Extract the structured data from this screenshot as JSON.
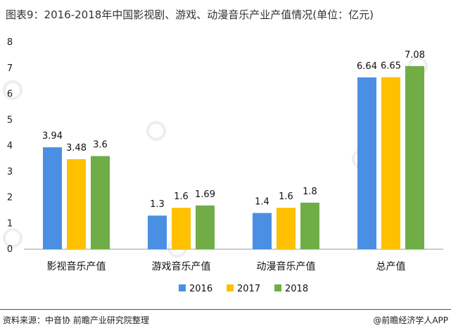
{
  "header": {
    "title": "图表9：2016-2018年中国影视剧、游戏、动漫音乐产业产值情况(单位：亿元)"
  },
  "footer": {
    "source": "资料来源：中音协 前瞻产业研究院整理",
    "credit": "@前瞻经济学人APP"
  },
  "colors": {
    "2016": "#4a8fe2",
    "2017": "#ffc000",
    "2018": "#70ad47",
    "axis": "#999999",
    "rule": "#2f5597"
  },
  "chart_data": {
    "type": "bar",
    "title": "图表9：2016-2018年中国影视剧、游戏、动漫音乐产业产值情况(单位：亿元)",
    "categories": [
      "影视音乐产值",
      "游戏音乐产值",
      "动漫音乐产值",
      "总产值"
    ],
    "series": [
      {
        "name": "2016",
        "values": [
          3.94,
          1.3,
          1.4,
          6.64
        ]
      },
      {
        "name": "2017",
        "values": [
          3.48,
          1.6,
          1.6,
          6.65
        ]
      },
      {
        "name": "2018",
        "values": [
          3.6,
          1.69,
          1.8,
          7.08
        ]
      }
    ],
    "value_labels": [
      [
        "3.94",
        "1.3",
        "1.4",
        "6.64"
      ],
      [
        "3.48",
        "1.6",
        "1.6",
        "6.65"
      ],
      [
        "3.6",
        "1.69",
        "1.8",
        "7.08"
      ]
    ],
    "ylim": [
      0,
      8
    ],
    "yticks": [
      "0",
      "1",
      "2",
      "3",
      "4",
      "5",
      "6",
      "7",
      "8"
    ],
    "xlabel": "",
    "ylabel": "",
    "grid": false,
    "legend": "bottom"
  }
}
